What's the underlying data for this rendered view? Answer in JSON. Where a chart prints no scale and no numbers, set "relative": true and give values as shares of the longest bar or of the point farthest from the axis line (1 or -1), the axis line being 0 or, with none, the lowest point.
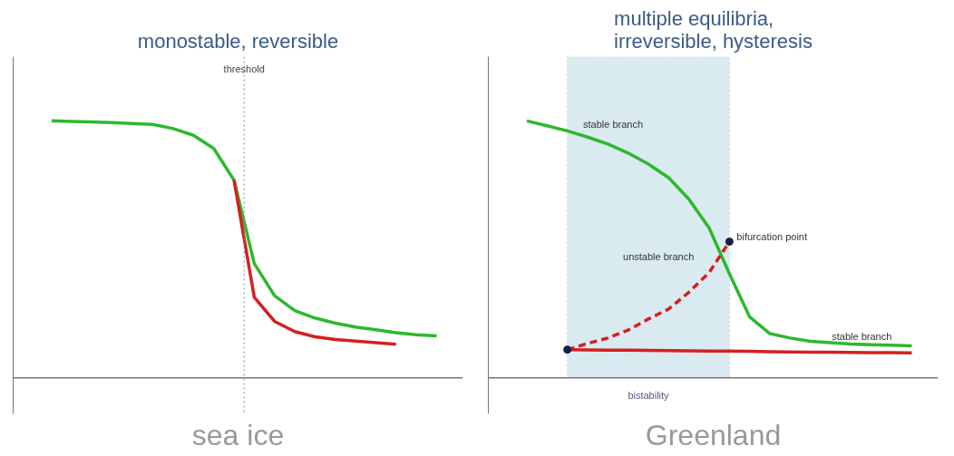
{
  "chart_data": [
    {
      "type": "line",
      "title": "monostable, reversible",
      "xlabel": "sea ice",
      "relative": true,
      "line_style": "solid",
      "marker": "none",
      "categories": [
        null,
        null,
        null,
        null,
        null,
        null,
        null,
        null,
        null,
        null,
        null,
        null,
        null,
        null,
        null,
        null,
        null,
        null,
        null,
        null
      ],
      "annotations": [
        "threshold"
      ],
      "series": [
        {
          "color": "#2db82d",
          "values": [
            1.0,
            0.998,
            0.996,
            0.993,
            0.99,
            0.986,
            0.97,
            0.944,
            0.893,
            0.77,
            0.445,
            0.32,
            0.262,
            0.233,
            0.213,
            0.198,
            0.187,
            0.176,
            0.168,
            0.163
          ]
        },
        {
          "color": "#d42020",
          "values": [
            null,
            null,
            null,
            null,
            null,
            null,
            null,
            null,
            null,
            0.77,
            0.314,
            0.22,
            0.18,
            0.16,
            0.149,
            0.143,
            0.137,
            0.131,
            null,
            null
          ]
        }
      ]
    },
    {
      "type": "line",
      "title": "multiple equilibria, irreversible, hysteresis",
      "xlabel": "Greenland",
      "relative": true,
      "line_style": "solid",
      "marker": "none",
      "categories": [
        null,
        null,
        null,
        null,
        null,
        null,
        null,
        null,
        null,
        null,
        null,
        null,
        null,
        null,
        null,
        null,
        null,
        null,
        null,
        null
      ],
      "annotations": [
        "stable branch",
        "bifurcation point",
        "unstable branch",
        "stable branch",
        "bistability"
      ],
      "series": [
        {
          "color": "#2db82d",
          "values": [
            1.0,
            0.981,
            0.961,
            0.937,
            0.91,
            0.875,
            0.832,
            0.779,
            0.695,
            0.583,
            0.405,
            0.237,
            0.172,
            0.155,
            0.142,
            0.137,
            0.132,
            0.129,
            0.127,
            0.125
          ]
        },
        {
          "color": "#d42020",
          "values": [
            null,
            null,
            0.11,
            0.109,
            0.108,
            0.108,
            0.107,
            0.106,
            0.105,
            0.104,
            0.104,
            0.103,
            0.102,
            0.101,
            0.1,
            0.1,
            0.099,
            0.098,
            0.098,
            0.097
          ]
        },
        {
          "color": "#d42020",
          "line_style": "dashed",
          "values": [
            null,
            null,
            0.11,
            0.134,
            0.155,
            0.186,
            0.229,
            0.268,
            0.333,
            0.41,
            0.53,
            null,
            null,
            null,
            null,
            null,
            null,
            null,
            null,
            null
          ]
        }
      ]
    }
  ]
}
